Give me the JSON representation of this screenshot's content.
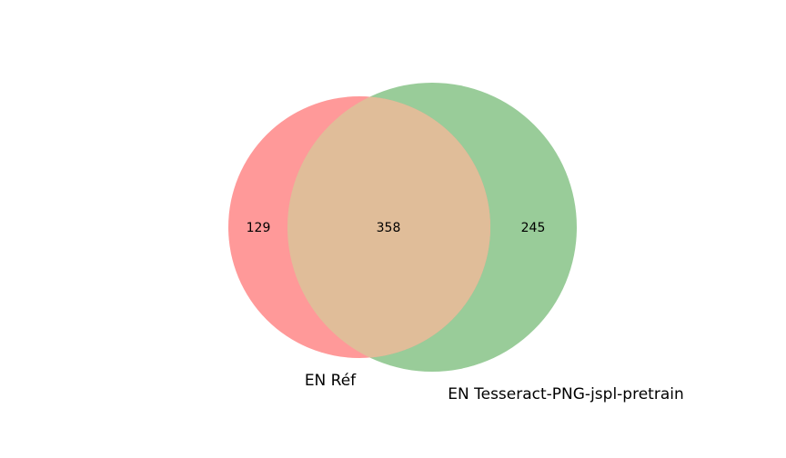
{
  "chart_data": {
    "type": "venn2",
    "sets": [
      {
        "name": "EN Réf",
        "only_count": "129",
        "color": "#ff9999"
      },
      {
        "name": "EN Tesseract-PNG-jspl-pretrain",
        "only_count": "245",
        "color": "#99cc99"
      }
    ],
    "intersection": {
      "count": "358",
      "color": "#e0bd99"
    }
  }
}
